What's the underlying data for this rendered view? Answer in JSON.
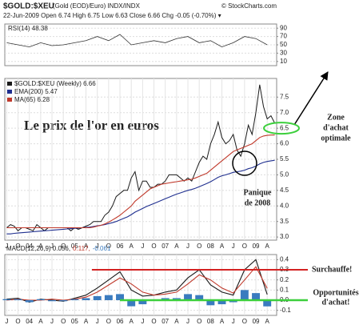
{
  "header": {
    "symbol": "$GOLD:$XEU",
    "description": "(Gold (EOD)/Euro) INDX/INDX",
    "source": "© StockCharts.com",
    "quote": "22-Jun-2009 Open 6.74 High 6.75 Low 6.63 Close 6.66 Chg -0.05 (-0.70%) ▾"
  },
  "chart_data": [
    {
      "type": "line",
      "title": "RSI(14) 48.38",
      "color": "#333333",
      "values": [
        55,
        50,
        45,
        55,
        48,
        50,
        55,
        60,
        70,
        60,
        75,
        50,
        55,
        60,
        55,
        65,
        70,
        55,
        60,
        45,
        55,
        70,
        65,
        50
      ],
      "ylim": [
        0,
        100
      ],
      "yticks": [
        90,
        70,
        50,
        30,
        10
      ],
      "grid": true
    },
    {
      "type": "line",
      "title": "Le prix de l'or en euros",
      "categories": [
        "J",
        null,
        null,
        "O",
        null,
        null,
        "04",
        null,
        null,
        "A",
        null,
        null,
        "J",
        null,
        null,
        "O",
        null,
        null,
        "05",
        null,
        null,
        "A",
        null,
        null,
        "J",
        null,
        null,
        "O",
        null,
        null,
        "06",
        null,
        null,
        "A",
        null,
        null,
        "J",
        null,
        null,
        "O",
        null,
        null,
        "07",
        null,
        null,
        "A",
        null,
        null,
        "J",
        null,
        null,
        "O",
        null,
        null,
        "08",
        null,
        null,
        "A",
        null,
        null,
        "J",
        null,
        null,
        "O",
        null,
        null,
        "09",
        null,
        null,
        "A",
        null,
        null
      ],
      "series": [
        {
          "name": "$GOLD:$XEU (Weekly) 6.66",
          "color": "#1a1a1a",
          "values": [
            3.3,
            3.4,
            3.35,
            3.2,
            3.3,
            3.3,
            3.25,
            3.2,
            3.4,
            3.3,
            3.2,
            3.3,
            3.3,
            3.3,
            3.3,
            3.3,
            3.3,
            3.2,
            3.3,
            3.25,
            3.3,
            3.35,
            3.4,
            3.5,
            3.5,
            3.5,
            3.7,
            3.8,
            4.0,
            4.3,
            4.4,
            4.5,
            4.5,
            4.9,
            5.1,
            4.5,
            4.8,
            4.8,
            4.6,
            4.6,
            4.7,
            4.7,
            4.8,
            5.0,
            5.0,
            5.0,
            4.9,
            4.8,
            4.9,
            4.8,
            5.1,
            5.4,
            5.6,
            5.5,
            6.0,
            6.3,
            6.7,
            6.2,
            6.0,
            6.1,
            6.3,
            5.8,
            5.6,
            6.0,
            6.6,
            6.3,
            7.0,
            7.9,
            7.2,
            6.8,
            6.9,
            6.66
          ]
        },
        {
          "name": "EMA(200) 5.47",
          "color": "#1f2f8f",
          "values": [
            3.1,
            3.1,
            3.12,
            3.13,
            3.14,
            3.15,
            3.16,
            3.17,
            3.18,
            3.19,
            3.2,
            3.21,
            3.22,
            3.23,
            3.24,
            3.25,
            3.26,
            3.27,
            3.28,
            3.29,
            3.3,
            3.31,
            3.32,
            3.34,
            3.36,
            3.38,
            3.4,
            3.43,
            3.46,
            3.5,
            3.55,
            3.6,
            3.65,
            3.72,
            3.8,
            3.86,
            3.92,
            3.98,
            4.03,
            4.08,
            4.13,
            4.18,
            4.23,
            4.28,
            4.33,
            4.38,
            4.42,
            4.46,
            4.5,
            4.53,
            4.57,
            4.62,
            4.67,
            4.72,
            4.78,
            4.85,
            4.92,
            4.97,
            5.0,
            5.04,
            5.08,
            5.1,
            5.12,
            5.15,
            5.2,
            5.23,
            5.28,
            5.35,
            5.4,
            5.43,
            5.45,
            5.47
          ]
        },
        {
          "name": "MA(65) 6.28",
          "color": "#c0392b",
          "values": [
            3.3,
            3.3,
            3.3,
            3.3,
            3.3,
            3.3,
            3.3,
            3.3,
            3.3,
            3.3,
            3.3,
            3.3,
            3.3,
            3.3,
            3.3,
            3.3,
            3.3,
            3.3,
            3.3,
            3.3,
            3.3,
            3.3,
            3.3,
            3.32,
            3.35,
            3.38,
            3.42,
            3.48,
            3.55,
            3.62,
            3.7,
            3.8,
            3.9,
            4.0,
            4.15,
            4.25,
            4.35,
            4.45,
            4.55,
            4.6,
            4.65,
            4.7,
            4.72,
            4.74,
            4.76,
            4.78,
            4.8,
            4.82,
            4.84,
            4.86,
            4.9,
            4.95,
            5.0,
            5.05,
            5.15,
            5.25,
            5.35,
            5.45,
            5.55,
            5.65,
            5.75,
            5.8,
            5.85,
            5.9,
            5.95,
            6.0,
            6.1,
            6.2,
            6.25,
            6.27,
            6.28,
            6.28
          ]
        }
      ],
      "ylim": [
        2.9,
        8.1
      ],
      "yticks": [
        {
          "value": 3,
          "label": "3.0"
        },
        3.5,
        {
          "value": 4,
          "label": "4.0"
        },
        4.5,
        {
          "value": 5,
          "label": "5.0"
        },
        5.5,
        {
          "value": 6,
          "label": "6.0"
        },
        6.5,
        {
          "value": 7,
          "label": "7.0"
        },
        7.5
      ],
      "grid": true,
      "annotations": [
        {
          "text": [
            "Zone",
            "d'achat",
            "optimale"
          ],
          "level": 6.5,
          "color": "#3ccf3c"
        },
        {
          "text": [
            "Panique",
            "de 2008"
          ]
        }
      ]
    },
    {
      "type": "line",
      "categories": [
        "J",
        "O",
        "04",
        "A",
        "J",
        "O",
        "05",
        "A",
        "J",
        "O",
        "06",
        "A",
        "J",
        "O",
        "07",
        "A",
        "J",
        "O",
        "08",
        "A",
        "J",
        "O",
        "09",
        "A"
      ],
      "series": [
        {
          "name": "MACD(12,26,9) 0.056,",
          "color": "#1a1a1a",
          "values": [
            0.01,
            0.02,
            -0.02,
            0.01,
            0.0,
            -0.01,
            0.02,
            0.05,
            0.12,
            0.2,
            0.28,
            0.1,
            0.04,
            0.05,
            0.08,
            0.1,
            0.22,
            0.3,
            0.15,
            0.08,
            0.05,
            0.3,
            0.4,
            0.056
          ]
        },
        {
          "name": "0.117,",
          "color": "#c0392b",
          "values": [
            0.0,
            0.01,
            0.0,
            0.0,
            0.01,
            0.0,
            0.01,
            0.03,
            0.08,
            0.15,
            0.22,
            0.16,
            0.08,
            0.05,
            0.06,
            0.08,
            0.16,
            0.25,
            0.2,
            0.12,
            0.07,
            0.2,
            0.33,
            0.117
          ]
        },
        {
          "name": "-0.061",
          "color": "#3a7bbf",
          "type": "bar",
          "values": [
            0.01,
            0.01,
            -0.02,
            0.01,
            -0.01,
            -0.01,
            0.01,
            0.02,
            0.04,
            0.05,
            0.06,
            -0.06,
            -0.04,
            0,
            0.02,
            0.02,
            0.06,
            0.05,
            -0.05,
            -0.04,
            -0.02,
            0.1,
            0.07,
            -0.061
          ]
        }
      ],
      "ylim": [
        -0.15,
        0.45
      ],
      "yticks": [
        -0.1,
        {
          "value": 0,
          "label": "0.0"
        },
        0.1,
        0.2,
        0.3,
        0.4
      ],
      "grid": true,
      "annotations": [
        {
          "text": [
            "Surchauffe!"
          ],
          "level": 0.3,
          "color": "#d42222"
        },
        {
          "text": [
            "Opportunités",
            "d'achat!"
          ],
          "level": 0,
          "color": "#3ccf3c"
        }
      ]
    }
  ]
}
